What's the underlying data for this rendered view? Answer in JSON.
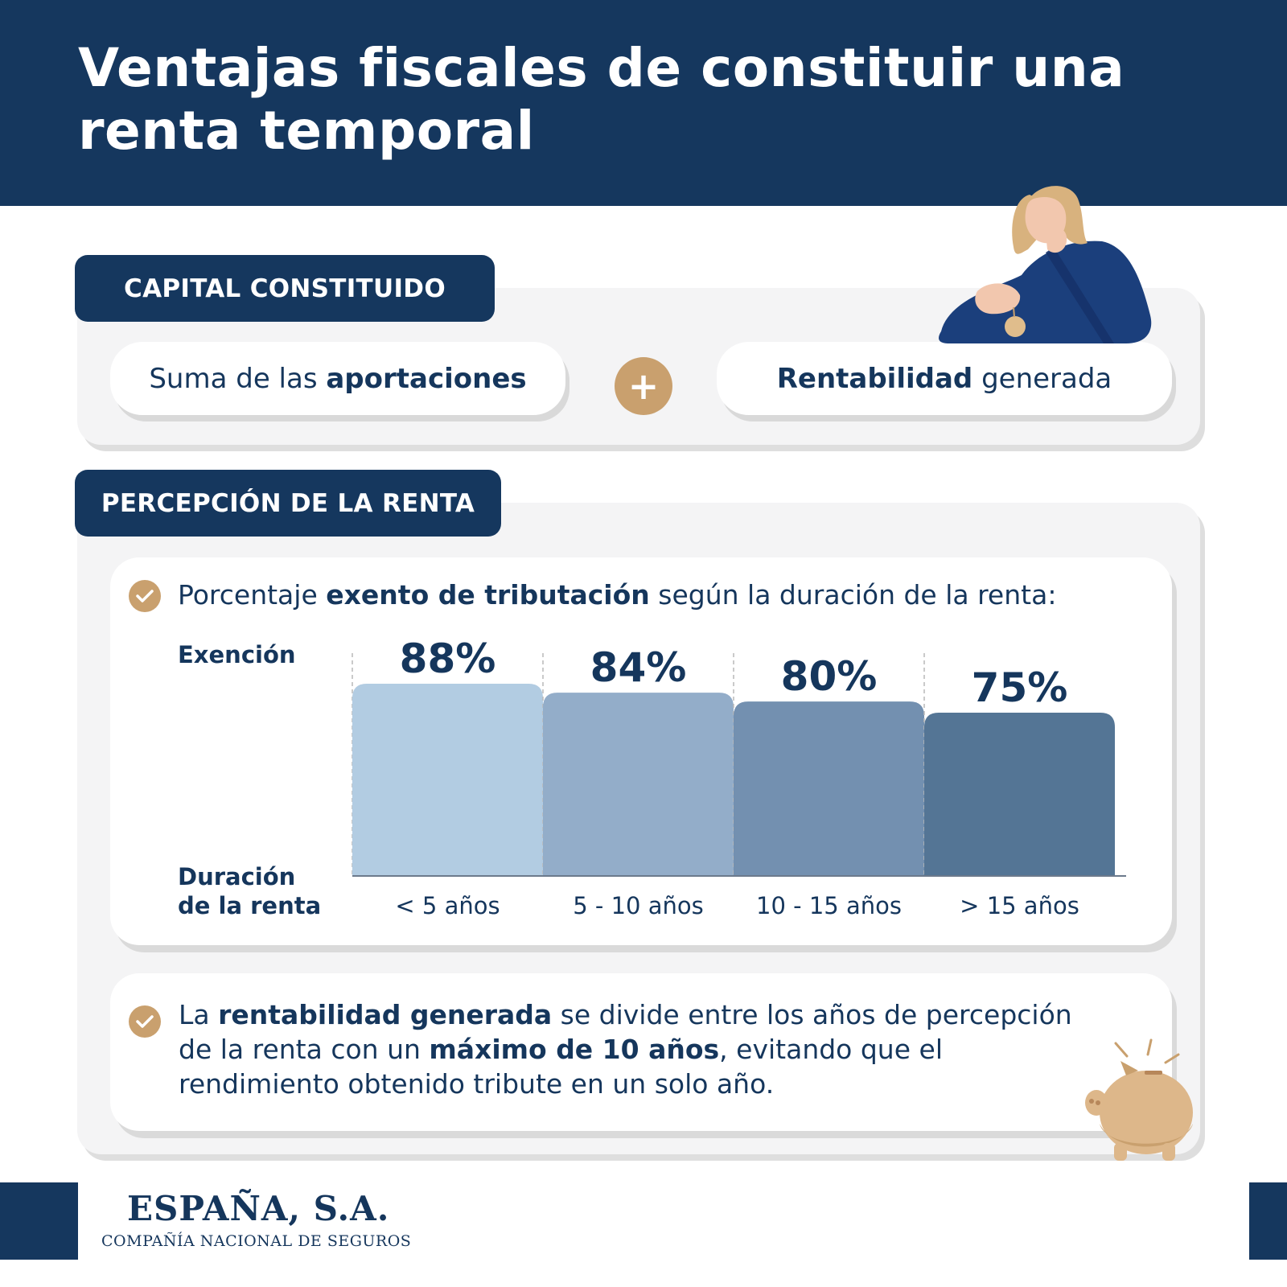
{
  "header": {
    "title": "Ventajas fiscales de constituir una renta temporal"
  },
  "capital": {
    "tab": "CAPITAL CONSTITUIDO",
    "left": {
      "pre": "Suma de las ",
      "bold": "aportaciones"
    },
    "plus": "+",
    "right": {
      "bold": "Rentabilidad",
      "post": " generada"
    }
  },
  "percepcion": {
    "tab": "PERCEPCIÓN DE LA RENTA",
    "intro": {
      "pre": "Porcentaje ",
      "bold": "exento de tributación",
      "post": " según la duración de la renta:"
    },
    "y_label": "Exención",
    "x_label_1": "Duración",
    "x_label_2": "de la renta",
    "note": {
      "l1_pre": "La ",
      "l1_bold": "rentabilidad generada",
      "l1_post": " se divide entre los años de percepción",
      "l2_pre": "de la renta con un ",
      "l2_bold": "máximo de 10 años",
      "l2_post": ", evitando que el",
      "l3": "rendimiento obtenido tribute en un solo año."
    }
  },
  "chart_data": {
    "type": "bar",
    "categories": [
      "< 5 años",
      "5 - 10 años",
      "10 - 15 años",
      "> 15 años"
    ],
    "values": [
      88,
      84,
      80,
      75
    ],
    "labels": [
      "88%",
      "84%",
      "80%",
      "75%"
    ],
    "colors": [
      "#b2cce2",
      "#93adc9",
      "#7390b0",
      "#547595"
    ],
    "ylabel": "Exención",
    "xlabel": "Duración de la renta",
    "grid": false
  },
  "footer": {
    "logo": "ESPAÑA, S.A.",
    "subtitle": "COMPAÑÍA NACIONAL DE SEGUROS"
  },
  "colors": {
    "navy": "#15375e",
    "gold": "#c9a06e",
    "panel": "#f4f4f5"
  },
  "icons": [
    "person-thinking-illustration",
    "check-icon",
    "plus-icon",
    "piggy-bank-illustration"
  ]
}
